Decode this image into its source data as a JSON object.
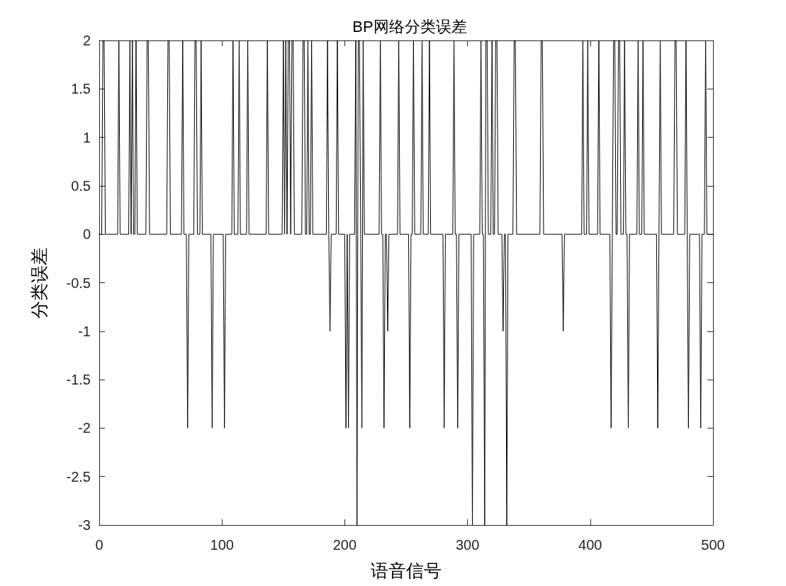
{
  "chart_data": {
    "type": "line",
    "title": "BP网络分类误差",
    "xlabel": "语音信号",
    "ylabel": "分类误差",
    "x": [
      0,
      2,
      3,
      4,
      5,
      15,
      16,
      17,
      24,
      25,
      26,
      27,
      28,
      29,
      30,
      31,
      38,
      39,
      40,
      41,
      55,
      56,
      57,
      58,
      67,
      68,
      69,
      71,
      72,
      73,
      77,
      78,
      79,
      80,
      82,
      83,
      84,
      91,
      92,
      93,
      101,
      102,
      103,
      108,
      109,
      110,
      113,
      114,
      115,
      120,
      121,
      122,
      136,
      137,
      138,
      149,
      150,
      151,
      152,
      153,
      154,
      155,
      156,
      157,
      158,
      159,
      165,
      166,
      167,
      168,
      169,
      170,
      171,
      172,
      173,
      174,
      185,
      186,
      187,
      188,
      189,
      193,
      194,
      195,
      200,
      201,
      202,
      203,
      204,
      208,
      209,
      210,
      211,
      212,
      213,
      214,
      215,
      216,
      228,
      229,
      230,
      231,
      232,
      233,
      234,
      235,
      236,
      243,
      244,
      245,
      252,
      253,
      254,
      255,
      256,
      257,
      262,
      263,
      264,
      268,
      269,
      270,
      280,
      281,
      282,
      288,
      289,
      290,
      291,
      292,
      293,
      303,
      304,
      305,
      310,
      311,
      312,
      313,
      314,
      315,
      316,
      317,
      319,
      320,
      321,
      322,
      323,
      324,
      325,
      328,
      329,
      330,
      331,
      332,
      333,
      337,
      338,
      339,
      340,
      359,
      360,
      361,
      362,
      377,
      378,
      379,
      393,
      394,
      395,
      397,
      398,
      399,
      406,
      407,
      408,
      416,
      417,
      418,
      419,
      420,
      421,
      422,
      423,
      424,
      425,
      427,
      428,
      429,
      430,
      431,
      432,
      438,
      439,
      440,
      442,
      443,
      444,
      454,
      455,
      456,
      457,
      458,
      468,
      469,
      470,
      471,
      477,
      478,
      479,
      480,
      481,
      489,
      490,
      491,
      493,
      494,
      495,
      500
    ],
    "values": [
      0,
      0,
      2,
      2,
      0,
      0,
      2,
      0,
      0,
      2,
      0,
      2,
      0,
      0,
      2,
      0,
      0,
      2,
      2,
      0,
      0,
      2,
      2,
      0,
      0,
      2,
      0,
      0,
      -2,
      0,
      0,
      2,
      2,
      0,
      0,
      2,
      0,
      0,
      -2,
      0,
      0,
      -2,
      0,
      0,
      2,
      0,
      0,
      2,
      0,
      0,
      2,
      0,
      0,
      2,
      0,
      0,
      2,
      0,
      2,
      0,
      2,
      2,
      0,
      2,
      2,
      0,
      0,
      2,
      2,
      0,
      0,
      2,
      0,
      0,
      2,
      0,
      0,
      2,
      0,
      -1,
      0,
      0,
      2,
      0,
      0,
      -2,
      0,
      -2,
      0,
      0,
      2,
      -3,
      2,
      2,
      0,
      -2,
      2,
      0,
      0,
      2,
      0,
      0,
      -2,
      0,
      0,
      -1,
      0,
      0,
      2,
      0,
      0,
      -2,
      0,
      0,
      2,
      0,
      0,
      2,
      0,
      0,
      2,
      0,
      0,
      -2,
      0,
      0,
      2,
      0,
      0,
      -2,
      0,
      0,
      -3,
      0,
      0,
      2,
      0,
      0,
      -3,
      2,
      2,
      0,
      0,
      2,
      0,
      0,
      2,
      2,
      0,
      0,
      -1,
      0,
      0,
      -3,
      0,
      0,
      2,
      2,
      0,
      0,
      2,
      2,
      0,
      0,
      -1,
      0,
      0,
      2,
      0,
      0,
      2,
      0,
      0,
      2,
      0,
      0,
      -2,
      0,
      2,
      2,
      0,
      0,
      2,
      2,
      0,
      0,
      2,
      0,
      0,
      -2,
      0,
      0,
      2,
      0,
      0,
      2,
      0,
      0,
      -2,
      0,
      2,
      0,
      0,
      2,
      2,
      0,
      0,
      2,
      0,
      -2,
      0,
      0,
      -2,
      0,
      0,
      2,
      0,
      0
    ],
    "color": "#000000",
    "xlim": [
      0,
      500
    ],
    "xticks": [
      0,
      100,
      200,
      300,
      400,
      500
    ],
    "ylim": [
      -3,
      2
    ],
    "yticks": [
      -3,
      -2.5,
      -2,
      -1.5,
      -1,
      -0.5,
      0,
      0.5,
      1,
      1.5,
      2
    ],
    "grid": false,
    "marker": "none",
    "line_style": "solid"
  }
}
